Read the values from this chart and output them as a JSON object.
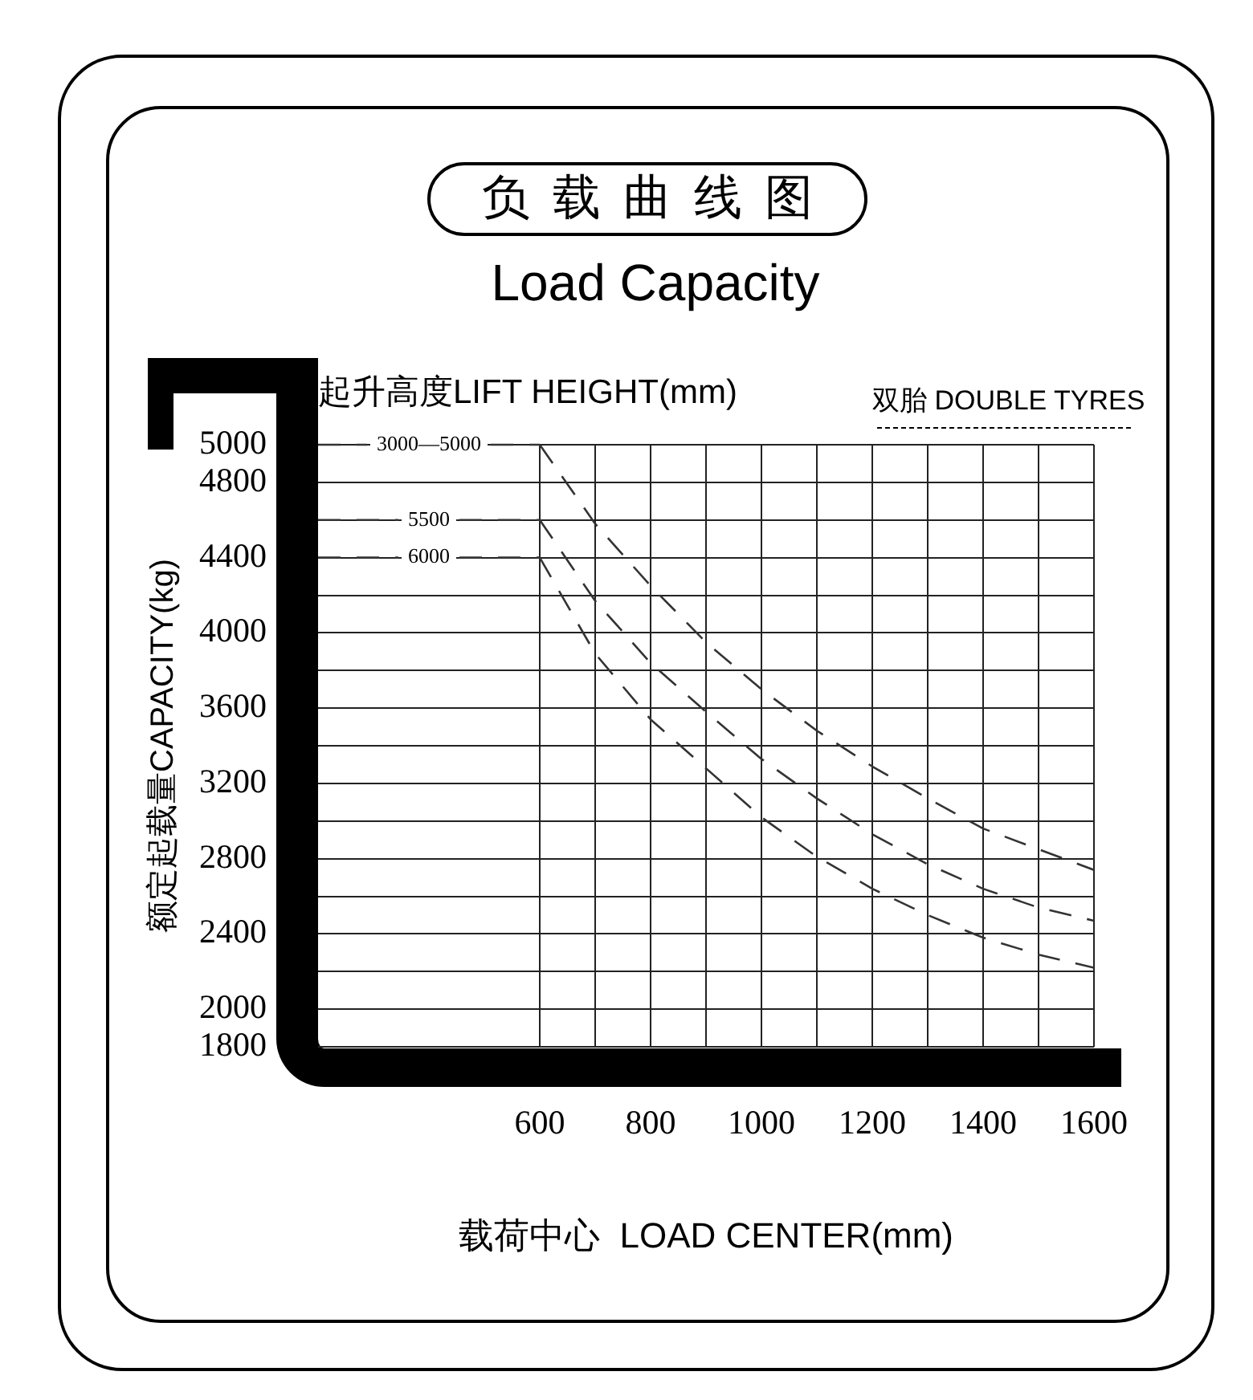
{
  "chart_data": {
    "type": "line",
    "title": "负载曲线图",
    "subtitle": "Load Capacity",
    "xlabel": "载荷中心  LOAD CENTER(mm)",
    "ylabel": "额定起载量CAPACITY(kg)",
    "legend_title": "起升高度LIFT HEIGHT(mm)",
    "annotations": [
      "双胎 DOUBLE TYRES"
    ],
    "x": [
      600,
      700,
      800,
      900,
      1000,
      1100,
      1200,
      1300,
      1400,
      1500,
      1600
    ],
    "series": [
      {
        "name": "3000—5000",
        "color": "#333333",
        "values": [
          5000,
          4580,
          4250,
          3950,
          3700,
          3480,
          3290,
          3120,
          2960,
          2850,
          2740
        ]
      },
      {
        "name": "5500",
        "color": "#333333",
        "values": [
          4600,
          4170,
          3840,
          3580,
          3330,
          3120,
          2930,
          2770,
          2640,
          2540,
          2470
        ]
      },
      {
        "name": "6000",
        "color": "#333333",
        "values": [
          4400,
          3890,
          3540,
          3280,
          3020,
          2810,
          2640,
          2500,
          2380,
          2290,
          2220
        ]
      }
    ],
    "xlim": [
      200,
      1600
    ],
    "xticks": [
      600,
      {
        "value": 700,
        "label": null
      },
      800,
      {
        "value": 900,
        "label": null
      },
      1000,
      {
        "value": 1100,
        "label": null
      },
      1200,
      {
        "value": 1300,
        "label": null
      },
      1400,
      {
        "value": 1500,
        "label": null
      },
      1600
    ],
    "ylim": [
      1800,
      5000
    ],
    "yticks": [
      1800,
      2000,
      {
        "value": 2200,
        "label": null
      },
      2400,
      {
        "value": 2600,
        "label": null
      },
      2800,
      {
        "value": 3000,
        "label": null
      },
      3200,
      {
        "value": 3400,
        "label": null
      },
      3600,
      {
        "value": 3800,
        "label": null
      },
      4000,
      {
        "value": 4200,
        "label": null
      },
      4400,
      {
        "value": 4600,
        "label": null
      },
      4800,
      5000
    ],
    "grid": true,
    "legend": "top left",
    "marker": "none",
    "line_style": "dashed"
  }
}
